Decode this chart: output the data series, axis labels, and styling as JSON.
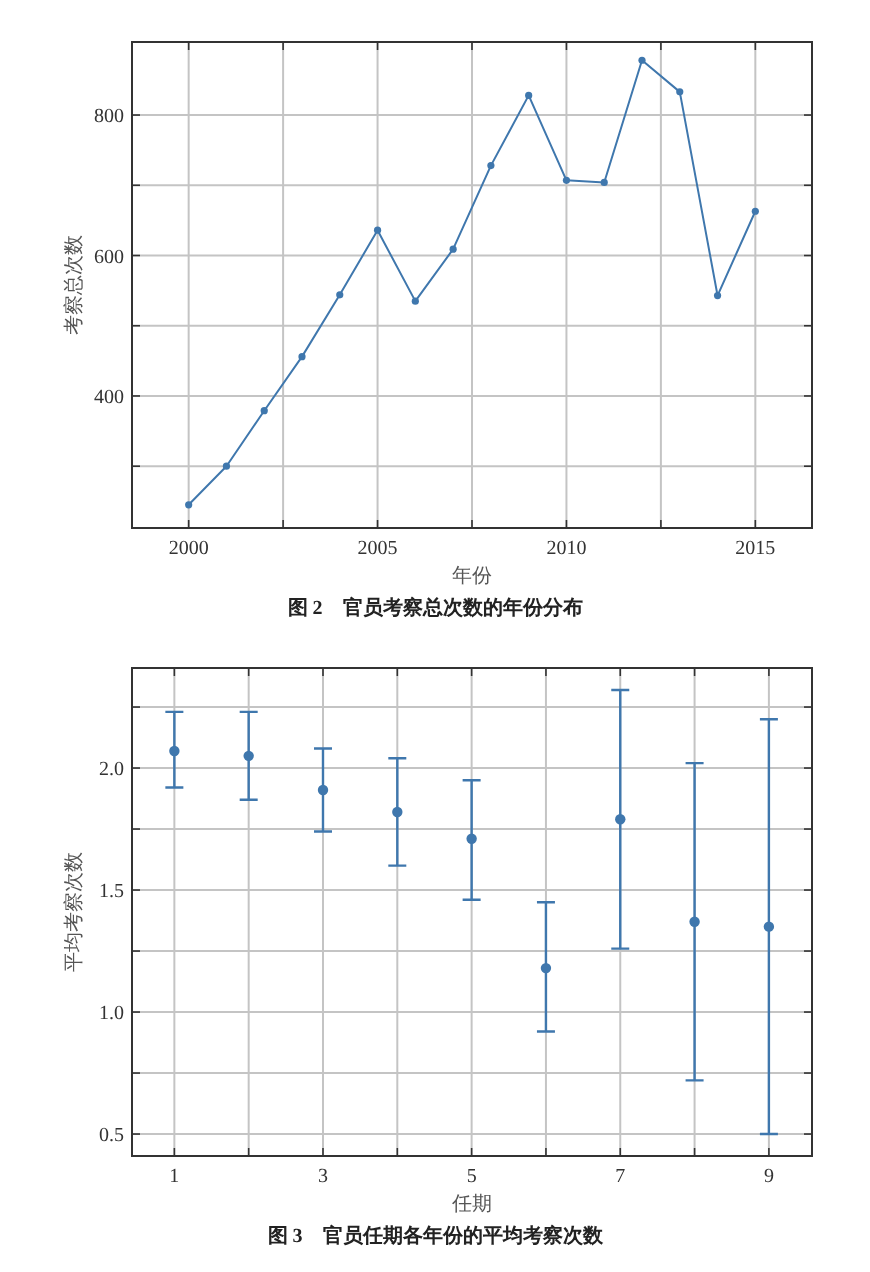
{
  "chart_data": [
    {
      "type": "line",
      "title": "图 2　官员考察总次数的年份分布",
      "xlabel": "年份",
      "ylabel": "考察总次数",
      "x": [
        2000,
        2001,
        2002,
        2003,
        2004,
        2005,
        2006,
        2007,
        2008,
        2009,
        2010,
        2011,
        2012,
        2013,
        2014,
        2015
      ],
      "values": [
        245,
        300,
        379,
        456,
        544,
        636,
        535,
        609,
        728,
        828,
        707,
        704,
        878,
        833,
        543,
        663
      ],
      "color": "#3f77ad",
      "marker": "circle",
      "grid": true,
      "xlim": [
        1998.5,
        2016.5
      ],
      "ylim": [
        212,
        904
      ],
      "xticks": [
        2000,
        {
          "value": 2002.5,
          "label": null
        },
        2005,
        {
          "value": 2007.5,
          "label": null
        },
        2010,
        {
          "value": 2012.5,
          "label": null
        },
        2015
      ],
      "yticks": [
        {
          "value": 300,
          "label": null
        },
        400,
        {
          "value": 500,
          "label": null
        },
        600,
        {
          "value": 700,
          "label": null
        },
        800
      ]
    },
    {
      "type": "scatter",
      "title": "图 3　官员任期各年份的平均考察次数",
      "xlabel": "任期",
      "ylabel": "平均考察次数",
      "x": [
        1,
        2,
        3,
        4,
        5,
        6,
        7,
        8,
        9
      ],
      "values": [
        2.07,
        2.05,
        1.91,
        1.82,
        1.71,
        1.18,
        1.79,
        1.37,
        1.35
      ],
      "errors": [
        [
          1.92,
          2.23
        ],
        [
          1.87,
          2.23
        ],
        [
          1.74,
          2.08
        ],
        [
          1.6,
          2.04
        ],
        [
          1.46,
          1.95
        ],
        [
          0.92,
          1.45
        ],
        [
          1.26,
          2.32
        ],
        [
          0.72,
          2.02
        ],
        [
          0.5,
          2.2
        ]
      ],
      "color": "#3f77ad",
      "marker": "circle",
      "grid": true,
      "xlim": [
        0.43,
        9.58
      ],
      "ylim": [
        0.41,
        2.41
      ],
      "xticks": [
        1,
        {
          "value": 2,
          "label": null
        },
        3,
        {
          "value": 4,
          "label": null
        },
        5,
        {
          "value": 6,
          "label": null
        },
        7,
        {
          "value": 8,
          "label": null
        },
        9
      ],
      "yticks": [
        0.5,
        {
          "value": 0.75,
          "label": null
        },
        {
          "value": 1,
          "label": "1.0"
        },
        {
          "value": 1.25,
          "label": null
        },
        1.5,
        {
          "value": 1.75,
          "label": null
        },
        {
          "value": 2,
          "label": "2.0"
        },
        {
          "value": 2.25,
          "label": null
        }
      ]
    }
  ]
}
